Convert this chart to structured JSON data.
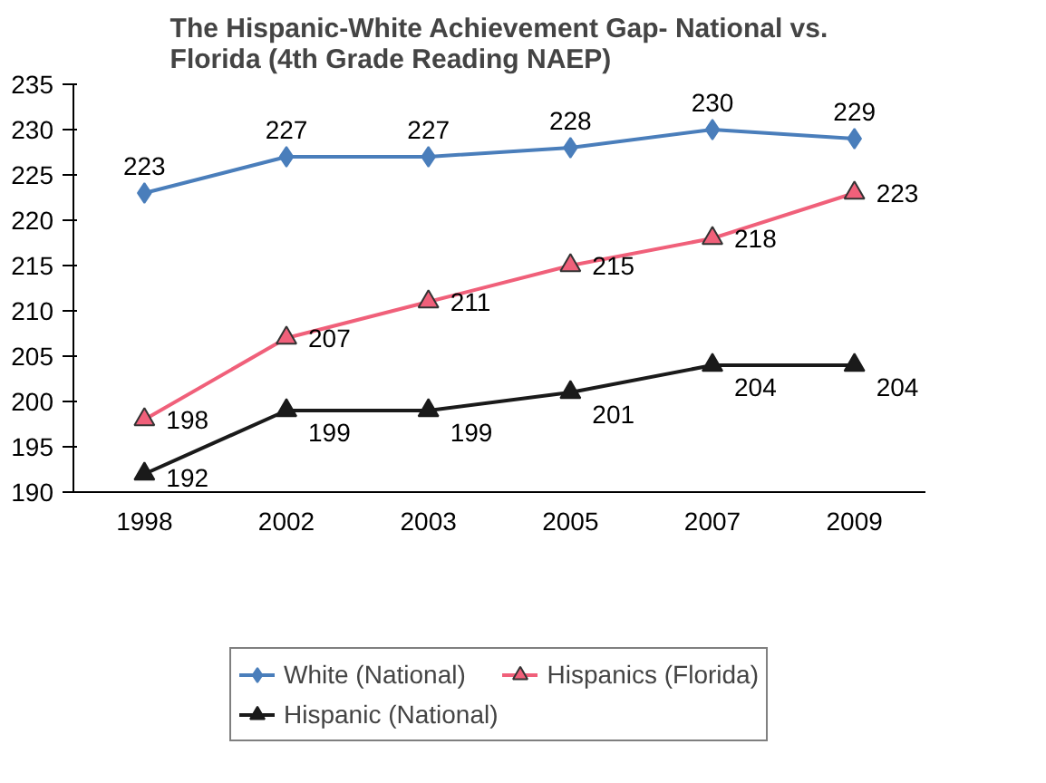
{
  "chart_data": {
    "type": "line",
    "title": "The Hispanic-White Achievement Gap- National vs. Florida (4th Grade Reading NAEP)",
    "categories": [
      "1998",
      "2002",
      "2003",
      "2005",
      "2007",
      "2009"
    ],
    "series": [
      {
        "name": "White (National)",
        "color": "#4a7ebb",
        "marker": "diamond",
        "values": [
          223,
          227,
          227,
          228,
          230,
          229
        ]
      },
      {
        "name": "Hispanic (National)",
        "color": "#1a1a1a",
        "marker": "triangle",
        "values": [
          192,
          199,
          199,
          201,
          204,
          204
        ]
      },
      {
        "name": "Hispanics (Florida)",
        "color": "#f0607a",
        "marker": "triangle",
        "values": [
          198,
          207,
          211,
          215,
          218,
          223
        ]
      }
    ],
    "ylim": [
      190,
      235
    ],
    "yticks": [
      190,
      195,
      200,
      205,
      210,
      215,
      220,
      225,
      230,
      235
    ],
    "grid": false,
    "legend": "bottom",
    "data_labels": true,
    "line_style": "solid"
  }
}
